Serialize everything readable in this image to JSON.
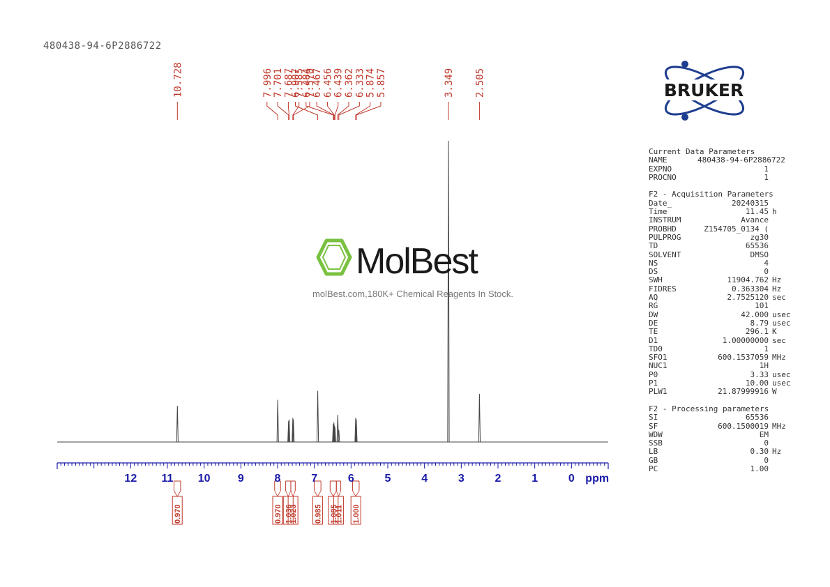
{
  "sample_id": "480438-94-6P2886722",
  "watermark": {
    "brand": "MolBest",
    "caption": "molBest.com,180K+ Chemical Reagents In Stock."
  },
  "logo": {
    "text": "BRUKER"
  },
  "colors": {
    "peak_labels": "#c0392b",
    "axis": "#1a1aa8",
    "spectrum": "#444444",
    "watermark_green": "#7ac142"
  },
  "chart_data": {
    "type": "line",
    "title": "",
    "xlabel": "ppm",
    "xlim": [
      14.0,
      -1.0
    ],
    "x_reversed": true,
    "x_ticks": [
      "12",
      "11",
      "10",
      "9",
      "8",
      "7",
      "6",
      "5",
      "4",
      "3",
      "2",
      "1",
      "0"
    ],
    "peak_labels": [
      "10.728",
      "7.996",
      "7.701",
      "7.687",
      "7.585",
      "7.570",
      "6.907",
      "6.484",
      "6.467",
      "6.456",
      "6.439",
      "6.362",
      "6.333",
      "5.874",
      "5.857",
      "3.349",
      "2.505"
    ],
    "peaks": [
      {
        "ppm": 10.728,
        "height": 0.12
      },
      {
        "ppm": 7.996,
        "height": 0.14
      },
      {
        "ppm": 7.701,
        "height": 0.07
      },
      {
        "ppm": 7.687,
        "height": 0.075
      },
      {
        "ppm": 7.585,
        "height": 0.08
      },
      {
        "ppm": 7.57,
        "height": 0.075
      },
      {
        "ppm": 6.907,
        "height": 0.17
      },
      {
        "ppm": 6.484,
        "height": 0.06
      },
      {
        "ppm": 6.467,
        "height": 0.065
      },
      {
        "ppm": 6.456,
        "height": 0.055
      },
      {
        "ppm": 6.439,
        "height": 0.05
      },
      {
        "ppm": 6.362,
        "height": 0.09
      },
      {
        "ppm": 6.333,
        "height": 0.04
      },
      {
        "ppm": 5.874,
        "height": 0.08
      },
      {
        "ppm": 5.857,
        "height": 0.075
      },
      {
        "ppm": 3.349,
        "height": 1.0
      },
      {
        "ppm": 2.505,
        "height": 0.16
      }
    ],
    "integrals": [
      {
        "value": "0.970",
        "from": 10.82,
        "to": 10.64
      },
      {
        "value": "0.970",
        "from": 8.08,
        "to": 7.92
      },
      {
        "value": "1.036",
        "from": 7.78,
        "to": 7.64
      },
      {
        "value": "1.023",
        "from": 7.64,
        "to": 7.52
      },
      {
        "value": "0.985",
        "from": 7.0,
        "to": 6.82
      },
      {
        "value": "1.085",
        "from": 6.57,
        "to": 6.4
      },
      {
        "value": "1.011",
        "from": 6.4,
        "to": 6.28
      },
      {
        "value": "1.000",
        "from": 5.96,
        "to": 5.78
      }
    ]
  },
  "parameters": [
    {
      "title": "Current Data Parameters",
      "rows": [
        {
          "key": "NAME",
          "value": "480438-94-6P2886722",
          "unit": ""
        },
        {
          "key": "EXPNO",
          "value": "1",
          "unit": ""
        },
        {
          "key": "PROCNO",
          "value": "1",
          "unit": ""
        }
      ]
    },
    {
      "title": "F2 - Acquisition Parameters",
      "rows": [
        {
          "key": "Date_",
          "value": "20240315",
          "unit": ""
        },
        {
          "key": "Time",
          "value": "11.45",
          "unit": "h"
        },
        {
          "key": "INSTRUM",
          "value": "Avance",
          "unit": ""
        },
        {
          "key": "PROBHD",
          "value": "Z154705_0134 (",
          "unit": ""
        },
        {
          "key": "PULPROG",
          "value": "zg30",
          "unit": ""
        },
        {
          "key": "TD",
          "value": "65536",
          "unit": ""
        },
        {
          "key": "SOLVENT",
          "value": "DMSO",
          "unit": ""
        },
        {
          "key": "NS",
          "value": "4",
          "unit": ""
        },
        {
          "key": "DS",
          "value": "0",
          "unit": ""
        },
        {
          "key": "SWH",
          "value": "11904.762",
          "unit": "Hz"
        },
        {
          "key": "FIDRES",
          "value": "0.363304",
          "unit": "Hz"
        },
        {
          "key": "AQ",
          "value": "2.7525120",
          "unit": "sec"
        },
        {
          "key": "RG",
          "value": "101",
          "unit": ""
        },
        {
          "key": "DW",
          "value": "42.000",
          "unit": "usec"
        },
        {
          "key": "DE",
          "value": "8.79",
          "unit": "usec"
        },
        {
          "key": "TE",
          "value": "296.1",
          "unit": "K"
        },
        {
          "key": "D1",
          "value": "1.00000000",
          "unit": "sec"
        },
        {
          "key": "TD0",
          "value": "1",
          "unit": ""
        },
        {
          "key": "SFO1",
          "value": "600.1537059",
          "unit": "MHz"
        },
        {
          "key": "NUC1",
          "value": "1H",
          "unit": ""
        },
        {
          "key": "P0",
          "value": "3.33",
          "unit": "usec"
        },
        {
          "key": "P1",
          "value": "10.00",
          "unit": "usec"
        },
        {
          "key": "PLW1",
          "value": "21.87999916",
          "unit": "W"
        }
      ]
    },
    {
      "title": "F2 - Processing parameters",
      "rows": [
        {
          "key": "SI",
          "value": "65536",
          "unit": ""
        },
        {
          "key": "SF",
          "value": "600.1500019",
          "unit": "MHz"
        },
        {
          "key": "WDW",
          "value": "EM",
          "unit": ""
        },
        {
          "key": "SSB",
          "value": "0",
          "unit": ""
        },
        {
          "key": "LB",
          "value": "0.30",
          "unit": "Hz"
        },
        {
          "key": "GB",
          "value": "0",
          "unit": ""
        },
        {
          "key": "PC",
          "value": "1.00",
          "unit": ""
        }
      ]
    }
  ]
}
